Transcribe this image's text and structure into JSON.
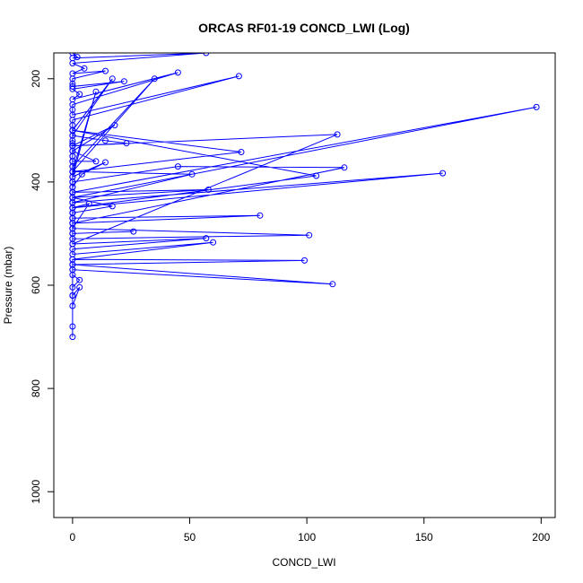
{
  "chart_data": {
    "type": "line",
    "title": "ORCAS RF01-19 CONCD_LWI (Log)",
    "xlabel": "CONCD_LWI",
    "ylabel": "Pressure (mbar)",
    "xlim": [
      -8,
      206
    ],
    "ylim": [
      1050,
      150
    ],
    "y_inverted": true,
    "xticks": [
      0,
      50,
      100,
      150,
      200
    ],
    "yticks": [
      200,
      400,
      600,
      800,
      1000
    ],
    "series": [
      {
        "color": "#0000ff",
        "marker": "open-circle",
        "x": [
          0,
          2,
          0,
          57,
          0,
          5,
          0,
          14,
          0,
          0,
          0,
          22,
          0,
          3,
          0,
          45,
          0,
          0,
          0,
          71,
          0,
          0,
          0,
          17,
          0,
          0,
          0,
          0,
          0,
          0,
          0,
          0,
          35,
          0,
          10,
          0,
          0,
          0,
          0,
          198,
          0,
          0,
          0,
          0,
          0,
          0,
          0,
          0,
          0,
          0,
          0,
          113,
          0,
          18,
          0,
          10,
          0,
          0,
          0,
          0,
          14,
          23,
          0,
          0,
          0,
          0,
          72,
          0,
          0,
          0,
          14,
          4,
          0,
          0,
          0,
          0,
          158,
          0,
          0,
          0,
          0,
          116,
          45,
          0,
          0,
          0,
          0,
          0,
          104,
          0,
          0,
          0,
          0,
          51,
          0,
          0,
          0,
          58,
          0,
          17,
          0,
          0,
          0,
          0,
          7,
          0,
          0,
          0,
          80,
          0,
          0,
          0,
          26,
          0,
          0,
          0,
          101,
          0,
          0,
          57,
          0,
          0,
          60,
          0,
          0,
          0,
          0,
          3,
          0,
          0,
          0,
          99,
          0,
          0,
          111,
          0,
          0,
          3,
          0,
          0,
          0
        ],
        "y": [
          150,
          158,
          160,
          150,
          170,
          180,
          190,
          185,
          200,
          210,
          215,
          205,
          220,
          230,
          240,
          188,
          250,
          260,
          270,
          195,
          280,
          290,
          300,
          200,
          310,
          320,
          325,
          330,
          340,
          350,
          360,
          370,
          200,
          380,
          225,
          390,
          400,
          410,
          420,
          255,
          430,
          440,
          300,
          450,
          460,
          470,
          480,
          490,
          500,
          510,
          520,
          308,
          330,
          290,
          340,
          360,
          360,
          300,
          350,
          310,
          320,
          325,
          330,
          360,
          370,
          380,
          342,
          300,
          380,
          390,
          362,
          385,
          410,
          420,
          430,
          440,
          383,
          450,
          460,
          470,
          480,
          372,
          370,
          400,
          420,
          430,
          440,
          450,
          388,
          300,
          400,
          420,
          440,
          385,
          380,
          400,
          420,
          415,
          430,
          447,
          460,
          470,
          480,
          490,
          442,
          450,
          460,
          470,
          465,
          480,
          490,
          500,
          496,
          500,
          480,
          490,
          503,
          510,
          520,
          509,
          530,
          540,
          517,
          550,
          560,
          570,
          580,
          590,
          604,
          620,
          550,
          552,
          560,
          570,
          598,
          560,
          640,
          604,
          620,
          680,
          700
        ]
      }
    ]
  }
}
